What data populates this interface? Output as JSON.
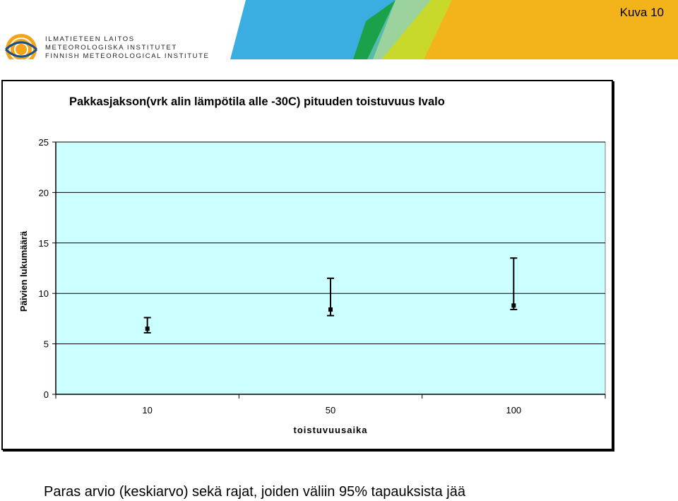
{
  "header": {
    "logo_lines": [
      "ILMATIETEEN LAITOS",
      "METEOROLOGISKA INSTITUTET",
      "FINNISH METEOROLOGICAL INSTITUTE"
    ],
    "slide_label": "Kuva 10",
    "logo_icon": "fmi-logo-icon",
    "banner_colors": [
      "#3aaee0",
      "#1aa14a",
      "#c8d92b",
      "#f3b41b"
    ]
  },
  "caption": "Paras arvio (keskiarvo)  sekä rajat, joiden väliin 95% tapauksista jää",
  "chart_data": {
    "type": "scatter",
    "title": "Pakkasjakson(vrk alin lämpötila alle -30C) pituuden toistuvuus Ivalo",
    "xlabel": "toistuvuusaika",
    "ylabel": "Päivien lukumäärä",
    "categories": [
      "10",
      "50",
      "100"
    ],
    "series": [
      {
        "values": [
          6.5,
          8.4,
          8.8
        ],
        "lower": [
          6.1,
          7.8,
          8.4
        ],
        "upper": [
          7.6,
          11.5,
          13.5
        ]
      }
    ],
    "ylim": [
      0,
      25
    ],
    "yticks": [
      0,
      5,
      10,
      15,
      20,
      25
    ],
    "grid": true,
    "plot_background": "#ccffff"
  }
}
